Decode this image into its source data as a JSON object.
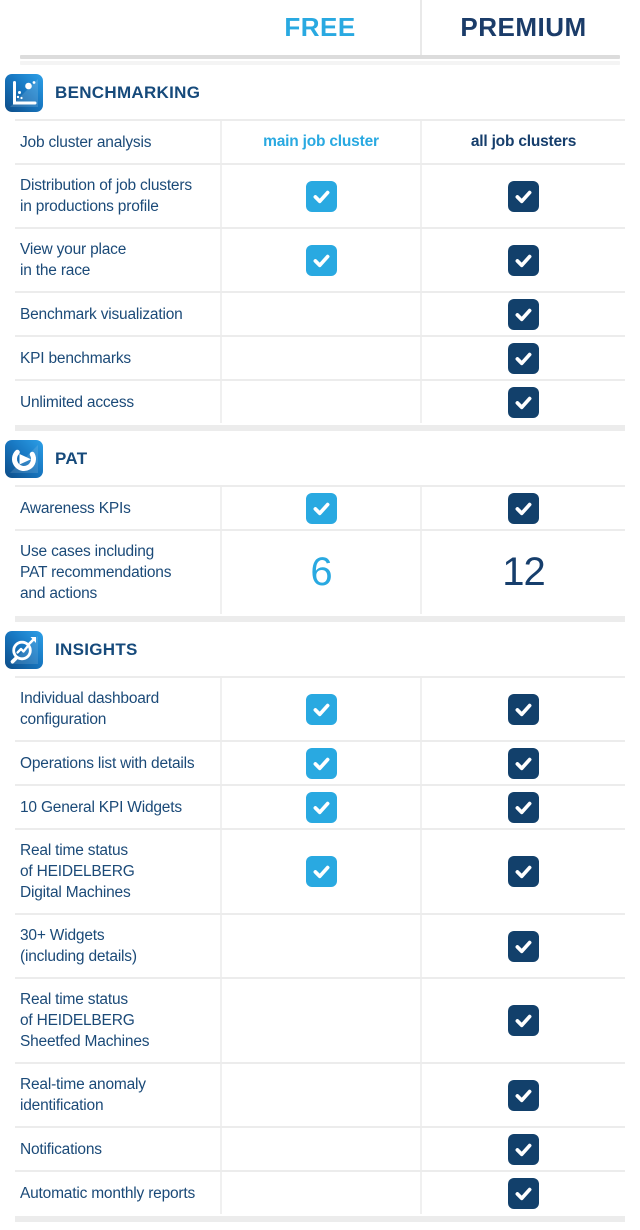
{
  "header": {
    "free_label": "FREE",
    "premium_label": "PREMIUM"
  },
  "colors": {
    "free_accent": "#29A9E1",
    "premium_accent": "#12406B",
    "label_text": "#1B4A78",
    "premium_header_text": "#1B3C69",
    "section_title_text": "#164A7B",
    "divider": "#ECECEC"
  },
  "sections": [
    {
      "title": "BENCHMARKING",
      "icon": "benchmarking-icon",
      "rows": [
        {
          "lines": [
            "Job cluster analysis"
          ],
          "free": {
            "type": "text",
            "value": "main job cluster"
          },
          "premium": {
            "type": "text",
            "value": "all job clusters"
          }
        },
        {
          "lines": [
            "Distribution of job clusters",
            "in productions profile"
          ],
          "free": {
            "type": "check"
          },
          "premium": {
            "type": "check"
          }
        },
        {
          "lines": [
            "View your place",
            "in the race"
          ],
          "free": {
            "type": "check"
          },
          "premium": {
            "type": "check"
          }
        },
        {
          "lines": [
            "Benchmark visualization"
          ],
          "free": {
            "type": "none"
          },
          "premium": {
            "type": "check"
          }
        },
        {
          "lines": [
            "KPI benchmarks"
          ],
          "free": {
            "type": "none"
          },
          "premium": {
            "type": "check"
          }
        },
        {
          "lines": [
            "Unlimited access"
          ],
          "free": {
            "type": "none"
          },
          "premium": {
            "type": "check"
          }
        }
      ]
    },
    {
      "title": "PAT",
      "icon": "pat-icon",
      "rows": [
        {
          "lines": [
            "Awareness KPIs"
          ],
          "free": {
            "type": "check"
          },
          "premium": {
            "type": "check"
          }
        },
        {
          "lines": [
            "Use cases including",
            "PAT recommendations",
            "and actions"
          ],
          "free": {
            "type": "number",
            "value": "6"
          },
          "premium": {
            "type": "number",
            "value": "12"
          }
        }
      ]
    },
    {
      "title": "INSIGHTS",
      "icon": "insights-icon",
      "rows": [
        {
          "lines": [
            "Individual dashboard",
            "configuration"
          ],
          "free": {
            "type": "check"
          },
          "premium": {
            "type": "check"
          }
        },
        {
          "lines": [
            "Operations list with details"
          ],
          "free": {
            "type": "check"
          },
          "premium": {
            "type": "check"
          }
        },
        {
          "lines": [
            "10 General KPI Widgets"
          ],
          "free": {
            "type": "check"
          },
          "premium": {
            "type": "check"
          }
        },
        {
          "lines": [
            "Real time status",
            "of HEIDELBERG",
            "Digital Machines"
          ],
          "free": {
            "type": "check"
          },
          "premium": {
            "type": "check"
          }
        },
        {
          "lines": [
            "30+ Widgets",
            "(including details)"
          ],
          "free": {
            "type": "none"
          },
          "premium": {
            "type": "check"
          }
        },
        {
          "lines": [
            "Real time status",
            "of HEIDELBERG",
            "Sheetfed Machines"
          ],
          "free": {
            "type": "none"
          },
          "premium": {
            "type": "check"
          }
        },
        {
          "lines": [
            "Real-time anomaly",
            "identification"
          ],
          "free": {
            "type": "none"
          },
          "premium": {
            "type": "check"
          }
        },
        {
          "lines": [
            "Notifications"
          ],
          "free": {
            "type": "none"
          },
          "premium": {
            "type": "check"
          }
        },
        {
          "lines": [
            "Automatic monthly reports"
          ],
          "free": {
            "type": "none"
          },
          "premium": {
            "type": "check"
          }
        }
      ]
    }
  ]
}
